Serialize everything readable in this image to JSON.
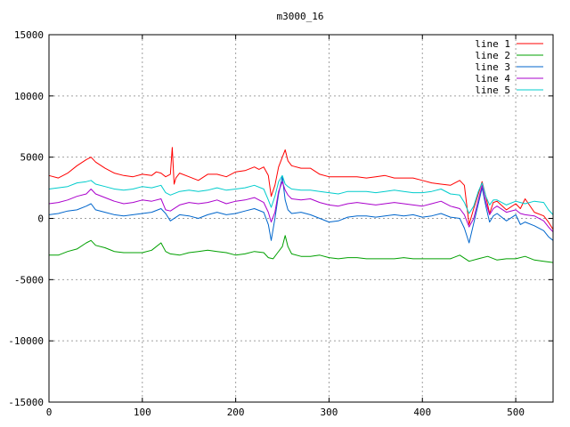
{
  "chart_data": {
    "type": "line",
    "title": "m3000_16",
    "xlabel": "",
    "ylabel": "",
    "xlim": [
      0,
      540
    ],
    "ylim": [
      -15000,
      15000
    ],
    "x_ticks": [
      0,
      100,
      200,
      300,
      400,
      500
    ],
    "y_ticks": [
      -15000,
      -10000,
      -5000,
      0,
      5000,
      10000,
      15000
    ],
    "grid": true,
    "legend_position": "top-right",
    "series": [
      {
        "name": "line 1",
        "color": "#ff0000",
        "x": [
          0,
          10,
          20,
          30,
          40,
          45,
          50,
          60,
          70,
          80,
          90,
          100,
          110,
          115,
          120,
          125,
          130,
          132,
          134,
          136,
          140,
          150,
          160,
          170,
          180,
          190,
          200,
          210,
          220,
          225,
          230,
          235,
          238,
          242,
          246,
          250,
          253,
          256,
          260,
          270,
          280,
          290,
          300,
          310,
          320,
          330,
          340,
          350,
          360,
          370,
          380,
          390,
          400,
          410,
          420,
          430,
          440,
          445,
          450,
          455,
          460,
          464,
          468,
          472,
          476,
          480,
          490,
          500,
          505,
          510,
          520,
          530,
          535,
          540
        ],
        "values": [
          3500,
          3300,
          3700,
          4300,
          4800,
          5000,
          4600,
          4100,
          3700,
          3500,
          3400,
          3600,
          3500,
          3800,
          3700,
          3400,
          3600,
          5800,
          2800,
          3300,
          3700,
          3400,
          3100,
          3600,
          3600,
          3400,
          3800,
          3900,
          4200,
          4000,
          4200,
          3500,
          1800,
          2700,
          4200,
          5000,
          5600,
          4700,
          4300,
          4100,
          4100,
          3600,
          3400,
          3400,
          3400,
          3400,
          3300,
          3400,
          3500,
          3300,
          3300,
          3300,
          3100,
          2900,
          2800,
          2700,
          3100,
          2700,
          -500,
          800,
          2000,
          3000,
          1800,
          400,
          1300,
          1400,
          700,
          1200,
          800,
          1600,
          500,
          200,
          -300,
          -900
        ]
      },
      {
        "name": "line 2",
        "color": "#00a000",
        "x": [
          0,
          10,
          20,
          30,
          40,
          45,
          50,
          60,
          70,
          80,
          90,
          100,
          110,
          120,
          125,
          130,
          140,
          150,
          160,
          170,
          180,
          190,
          200,
          210,
          220,
          230,
          235,
          240,
          245,
          250,
          253,
          256,
          260,
          270,
          280,
          290,
          300,
          310,
          320,
          330,
          340,
          350,
          360,
          370,
          380,
          390,
          400,
          410,
          420,
          430,
          440,
          450,
          460,
          470,
          480,
          490,
          500,
          510,
          520,
          530,
          540
        ],
        "values": [
          -3000,
          -3000,
          -2700,
          -2500,
          -2000,
          -1800,
          -2200,
          -2400,
          -2700,
          -2800,
          -2800,
          -2800,
          -2600,
          -2000,
          -2700,
          -2900,
          -3000,
          -2800,
          -2700,
          -2600,
          -2700,
          -2800,
          -3000,
          -2900,
          -2700,
          -2800,
          -3200,
          -3300,
          -2800,
          -2300,
          -1400,
          -2300,
          -2900,
          -3100,
          -3100,
          -3000,
          -3200,
          -3300,
          -3200,
          -3200,
          -3300,
          -3300,
          -3300,
          -3300,
          -3200,
          -3300,
          -3300,
          -3300,
          -3300,
          -3300,
          -3000,
          -3500,
          -3300,
          -3100,
          -3400,
          -3300,
          -3300,
          -3100,
          -3400,
          -3500,
          -3600
        ]
      },
      {
        "name": "line 3",
        "color": "#0066cc",
        "x": [
          0,
          10,
          20,
          30,
          40,
          45,
          50,
          60,
          70,
          80,
          90,
          100,
          110,
          120,
          125,
          130,
          140,
          150,
          160,
          170,
          180,
          190,
          200,
          210,
          220,
          230,
          235,
          238,
          242,
          246,
          250,
          253,
          256,
          260,
          270,
          280,
          290,
          300,
          310,
          320,
          330,
          340,
          350,
          360,
          370,
          380,
          390,
          400,
          410,
          420,
          430,
          440,
          445,
          450,
          455,
          460,
          464,
          468,
          472,
          476,
          480,
          490,
          500,
          505,
          510,
          520,
          530,
          535,
          540
        ],
        "values": [
          300,
          400,
          600,
          700,
          1000,
          1200,
          700,
          500,
          300,
          200,
          300,
          400,
          500,
          800,
          400,
          -200,
          300,
          200,
          0,
          300,
          500,
          300,
          400,
          600,
          800,
          500,
          -500,
          -1800,
          0,
          2000,
          3400,
          1500,
          700,
          400,
          500,
          300,
          0,
          -300,
          -200,
          100,
          200,
          200,
          100,
          200,
          300,
          200,
          300,
          100,
          200,
          400,
          100,
          0,
          -800,
          -2000,
          -400,
          1200,
          2500,
          1000,
          -300,
          200,
          400,
          -200,
          300,
          -500,
          -300,
          -600,
          -1000,
          -1500,
          -1800
        ]
      },
      {
        "name": "line 4",
        "color": "#aa00cc",
        "x": [
          0,
          10,
          20,
          30,
          40,
          45,
          50,
          60,
          70,
          80,
          90,
          100,
          110,
          120,
          125,
          130,
          140,
          150,
          160,
          170,
          180,
          190,
          200,
          210,
          220,
          230,
          235,
          238,
          242,
          246,
          250,
          253,
          256,
          260,
          270,
          280,
          290,
          300,
          310,
          320,
          330,
          340,
          350,
          360,
          370,
          380,
          390,
          400,
          410,
          420,
          430,
          440,
          445,
          450,
          455,
          460,
          464,
          468,
          472,
          476,
          480,
          490,
          500,
          505,
          510,
          520,
          530,
          535,
          540
        ],
        "values": [
          1200,
          1300,
          1500,
          1800,
          2000,
          2400,
          2000,
          1700,
          1400,
          1200,
          1300,
          1500,
          1400,
          1600,
          700,
          600,
          1100,
          1300,
          1200,
          1300,
          1500,
          1200,
          1400,
          1500,
          1700,
          1300,
          500,
          -300,
          500,
          2200,
          3000,
          2300,
          1900,
          1600,
          1500,
          1600,
          1300,
          1100,
          1000,
          1200,
          1300,
          1200,
          1100,
          1200,
          1300,
          1200,
          1100,
          1000,
          1200,
          1400,
          1000,
          800,
          300,
          -700,
          0,
          1500,
          2700,
          1300,
          300,
          800,
          1000,
          500,
          700,
          400,
          300,
          200,
          -200,
          -700,
          -1100
        ]
      },
      {
        "name": "line 5",
        "color": "#00cccc",
        "x": [
          0,
          10,
          20,
          30,
          40,
          45,
          50,
          60,
          70,
          80,
          90,
          100,
          110,
          120,
          125,
          130,
          140,
          150,
          160,
          170,
          180,
          190,
          200,
          210,
          220,
          230,
          235,
          238,
          242,
          246,
          250,
          253,
          256,
          260,
          270,
          280,
          290,
          300,
          310,
          320,
          330,
          340,
          350,
          360,
          370,
          380,
          390,
          400,
          410,
          420,
          430,
          440,
          445,
          450,
          455,
          460,
          464,
          468,
          472,
          476,
          480,
          490,
          500,
          505,
          510,
          520,
          530,
          535,
          540
        ],
        "values": [
          2400,
          2500,
          2600,
          2900,
          3000,
          3100,
          2800,
          2600,
          2400,
          2300,
          2400,
          2600,
          2500,
          2700,
          2100,
          1900,
          2200,
          2300,
          2200,
          2300,
          2500,
          2300,
          2400,
          2500,
          2700,
          2400,
          1500,
          900,
          1800,
          3000,
          3500,
          2800,
          2600,
          2400,
          2300,
          2300,
          2200,
          2100,
          2000,
          2200,
          2200,
          2200,
          2100,
          2200,
          2300,
          2200,
          2100,
          2100,
          2200,
          2400,
          2000,
          1900,
          1300,
          400,
          1000,
          2200,
          2900,
          1800,
          1100,
          1500,
          1500,
          1100,
          1400,
          1300,
          1200,
          1400,
          1300,
          700,
          300
        ]
      }
    ]
  }
}
